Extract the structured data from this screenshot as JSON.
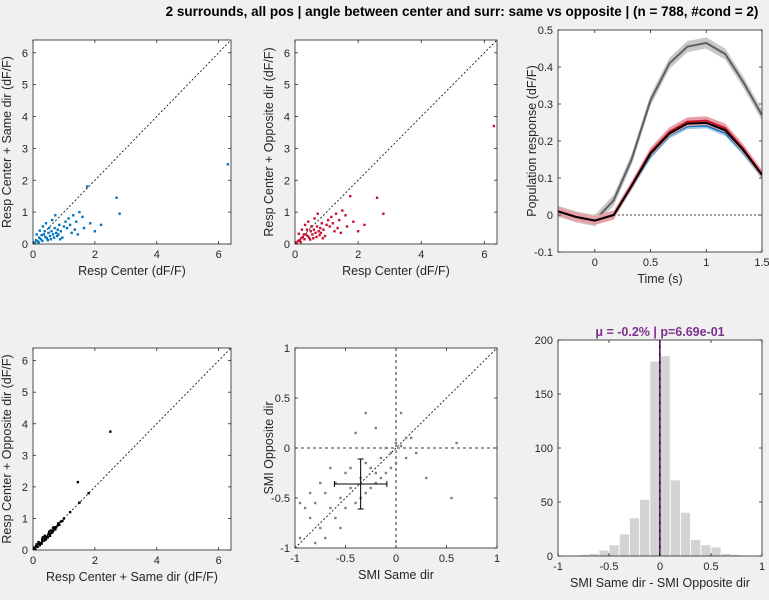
{
  "figure": {
    "title": "2 surrounds, all pos | angle between center and surr: same vs opposite | (n = 788, #cond = 2)"
  },
  "colors": {
    "same": "#0072bd",
    "opposite": "#c8102e",
    "black": "#000000",
    "gray": "#808080",
    "center_line": "#606060",
    "hist_bar": "#d3d3d3",
    "mean_line": "#7e2f8e"
  },
  "chart_data": [
    {
      "id": "p1",
      "type": "scatter",
      "xlabel": "Resp Center (dF/F)",
      "ylabel": "Resp Center + Same dir (dF/F)",
      "xlim": [
        0,
        6.4
      ],
      "ylim": [
        0,
        6.4
      ],
      "xticks": [
        0,
        2,
        4,
        6
      ],
      "yticks": [
        0,
        1,
        2,
        3,
        4,
        5,
        6
      ],
      "diagonal": true,
      "color": "same",
      "points": [
        [
          0.05,
          0.05
        ],
        [
          0.1,
          0.12
        ],
        [
          0.15,
          0.08
        ],
        [
          0.2,
          0.2
        ],
        [
          0.25,
          0.15
        ],
        [
          0.3,
          0.1
        ],
        [
          0.35,
          0.3
        ],
        [
          0.4,
          0.22
        ],
        [
          0.45,
          0.18
        ],
        [
          0.5,
          0.35
        ],
        [
          0.55,
          0.25
        ],
        [
          0.6,
          0.4
        ],
        [
          0.65,
          0.3
        ],
        [
          0.7,
          0.5
        ],
        [
          0.75,
          0.35
        ],
        [
          0.8,
          0.45
        ],
        [
          0.85,
          0.6
        ],
        [
          0.9,
          0.4
        ],
        [
          1.0,
          0.55
        ],
        [
          1.05,
          0.7
        ],
        [
          1.1,
          0.5
        ],
        [
          1.15,
          0.8
        ],
        [
          1.2,
          0.6
        ],
        [
          1.3,
          0.9
        ],
        [
          1.4,
          0.7
        ],
        [
          1.5,
          1.0
        ],
        [
          1.6,
          0.85
        ],
        [
          1.75,
          1.8
        ],
        [
          2.0,
          0.4
        ],
        [
          2.2,
          0.6
        ],
        [
          2.8,
          0.95
        ],
        [
          2.7,
          1.45
        ],
        [
          6.3,
          2.5
        ],
        [
          0.12,
          0.3
        ],
        [
          0.22,
          0.42
        ],
        [
          0.32,
          0.55
        ],
        [
          0.42,
          0.65
        ],
        [
          0.52,
          0.5
        ],
        [
          0.62,
          0.75
        ],
        [
          0.72,
          0.9
        ],
        [
          0.82,
          0.3
        ],
        [
          0.95,
          0.2
        ],
        [
          1.25,
          0.35
        ],
        [
          1.35,
          0.45
        ],
        [
          1.45,
          0.3
        ],
        [
          1.65,
          0.5
        ],
        [
          1.85,
          0.65
        ],
        [
          0.18,
          0.05
        ],
        [
          0.28,
          0.28
        ],
        [
          0.38,
          0.4
        ],
        [
          0.48,
          0.12
        ],
        [
          0.58,
          0.15
        ],
        [
          0.68,
          0.2
        ],
        [
          0.78,
          0.25
        ],
        [
          0.88,
          0.15
        ]
      ]
    },
    {
      "id": "p2",
      "type": "scatter",
      "xlabel": "Resp Center (dF/F)",
      "ylabel": "Resp Center + Opposite dir (dF/F)",
      "xlim": [
        0,
        6.4
      ],
      "ylim": [
        0,
        6.4
      ],
      "xticks": [
        0,
        2,
        4,
        6
      ],
      "yticks": [
        0,
        1,
        2,
        3,
        4,
        5,
        6
      ],
      "diagonal": true,
      "color": "opposite",
      "points": [
        [
          0.05,
          0.05
        ],
        [
          0.1,
          0.1
        ],
        [
          0.15,
          0.12
        ],
        [
          0.2,
          0.18
        ],
        [
          0.25,
          0.22
        ],
        [
          0.3,
          0.15
        ],
        [
          0.35,
          0.3
        ],
        [
          0.4,
          0.25
        ],
        [
          0.45,
          0.2
        ],
        [
          0.5,
          0.4
        ],
        [
          0.55,
          0.3
        ],
        [
          0.6,
          0.45
        ],
        [
          0.65,
          0.35
        ],
        [
          0.7,
          0.55
        ],
        [
          0.75,
          0.4
        ],
        [
          0.8,
          0.5
        ],
        [
          0.85,
          0.65
        ],
        [
          0.9,
          0.45
        ],
        [
          1.0,
          0.6
        ],
        [
          1.05,
          0.75
        ],
        [
          1.1,
          0.55
        ],
        [
          1.15,
          0.85
        ],
        [
          1.2,
          0.65
        ],
        [
          1.3,
          0.95
        ],
        [
          1.4,
          0.75
        ],
        [
          1.5,
          1.05
        ],
        [
          1.6,
          0.9
        ],
        [
          1.75,
          1.5
        ],
        [
          2.0,
          0.4
        ],
        [
          2.2,
          0.6
        ],
        [
          2.8,
          0.95
        ],
        [
          2.6,
          1.45
        ],
        [
          6.3,
          3.7
        ],
        [
          0.12,
          0.32
        ],
        [
          0.22,
          0.45
        ],
        [
          0.32,
          0.6
        ],
        [
          0.42,
          0.7
        ],
        [
          0.52,
          0.55
        ],
        [
          0.62,
          0.8
        ],
        [
          0.72,
          0.95
        ],
        [
          0.82,
          0.35
        ],
        [
          0.95,
          0.25
        ],
        [
          1.25,
          0.4
        ],
        [
          1.35,
          0.5
        ],
        [
          1.45,
          0.35
        ],
        [
          1.65,
          0.55
        ],
        [
          1.85,
          0.7
        ],
        [
          0.18,
          0.06
        ],
        [
          0.28,
          0.3
        ],
        [
          0.38,
          0.45
        ],
        [
          0.48,
          0.14
        ],
        [
          0.58,
          0.18
        ],
        [
          0.68,
          0.22
        ],
        [
          0.78,
          0.28
        ],
        [
          0.88,
          0.18
        ]
      ]
    },
    {
      "id": "p3",
      "type": "line",
      "xlabel": "Time (s)",
      "ylabel": "Population response (dF/F)",
      "xlim": [
        -0.33,
        1.5
      ],
      "ylim": [
        -0.1,
        0.5
      ],
      "xticks": [
        0,
        0.5,
        1,
        1.5
      ],
      "yticks": [
        -0.1,
        0,
        0.1,
        0.2,
        0.3,
        0.4,
        0.5
      ],
      "zero_line": true,
      "x": [
        -0.33,
        -0.17,
        0,
        0.17,
        0.33,
        0.5,
        0.67,
        0.83,
        1.0,
        1.17,
        1.33,
        1.5
      ],
      "series": [
        {
          "color": "center_line",
          "band": "#c8c8c8",
          "band_width": 0.015,
          "values": [
            0.01,
            -0.005,
            -0.015,
            0.04,
            0.15,
            0.31,
            0.41,
            0.455,
            0.465,
            0.435,
            0.36,
            0.27
          ]
        },
        {
          "color": "same",
          "band": "#9ec3e6",
          "band_width": 0.008,
          "values": [
            0.01,
            -0.005,
            -0.015,
            0.0,
            0.075,
            0.16,
            0.215,
            0.24,
            0.242,
            0.222,
            0.17,
            0.105
          ]
        },
        {
          "color": "opposite",
          "band": "#e8a0a8",
          "band_width": 0.012,
          "values": [
            0.01,
            -0.005,
            -0.015,
            0.0,
            0.08,
            0.17,
            0.225,
            0.252,
            0.255,
            0.235,
            0.18,
            0.11
          ]
        },
        {
          "color": "black",
          "band": "none",
          "band_width": 0,
          "values": [
            0.01,
            -0.005,
            -0.015,
            0.0,
            0.078,
            0.166,
            0.22,
            0.247,
            0.249,
            0.229,
            0.176,
            0.108
          ]
        }
      ]
    },
    {
      "id": "p4",
      "type": "scatter",
      "xlabel": "Resp Center + Same dir (dF/F)",
      "ylabel": "Resp Center + Opposite dir (dF/F)",
      "xlim": [
        0,
        6.4
      ],
      "ylim": [
        0,
        6.4
      ],
      "xticks": [
        0,
        2,
        4,
        6
      ],
      "yticks": [
        0,
        1,
        2,
        3,
        4,
        5,
        6
      ],
      "diagonal": true,
      "color": "black",
      "points": [
        [
          0.05,
          0.05
        ],
        [
          0.1,
          0.12
        ],
        [
          0.15,
          0.1
        ],
        [
          0.2,
          0.2
        ],
        [
          0.25,
          0.22
        ],
        [
          0.3,
          0.28
        ],
        [
          0.35,
          0.3
        ],
        [
          0.4,
          0.38
        ],
        [
          0.45,
          0.42
        ],
        [
          0.5,
          0.5
        ],
        [
          0.55,
          0.5
        ],
        [
          0.6,
          0.6
        ],
        [
          0.65,
          0.6
        ],
        [
          0.7,
          0.68
        ],
        [
          0.75,
          0.72
        ],
        [
          0.8,
          0.78
        ],
        [
          0.85,
          0.8
        ],
        [
          0.9,
          0.9
        ],
        [
          0.95,
          0.92
        ],
        [
          1.0,
          1.0
        ],
        [
          1.2,
          1.2
        ],
        [
          1.45,
          2.15
        ],
        [
          1.5,
          1.5
        ],
        [
          1.8,
          1.8
        ],
        [
          2.5,
          3.75
        ],
        [
          0.12,
          0.18
        ],
        [
          0.22,
          0.15
        ],
        [
          0.32,
          0.4
        ],
        [
          0.42,
          0.35
        ],
        [
          0.52,
          0.58
        ],
        [
          0.62,
          0.55
        ],
        [
          0.72,
          0.65
        ],
        [
          0.82,
          0.85
        ],
        [
          0.18,
          0.25
        ],
        [
          0.28,
          0.2
        ],
        [
          0.38,
          0.45
        ],
        [
          0.48,
          0.4
        ],
        [
          0.58,
          0.62
        ],
        [
          0.68,
          0.72
        ],
        [
          0.08,
          0.02
        ],
        [
          0.02,
          0.08
        ],
        [
          0.3,
          0.35
        ],
        [
          0.4,
          0.32
        ],
        [
          0.55,
          0.45
        ],
        [
          0.65,
          0.7
        ]
      ]
    },
    {
      "id": "p5",
      "type": "scatter",
      "xlabel": "SMI Same dir",
      "ylabel": "SMI Opposite dir",
      "xlim": [
        -1,
        1
      ],
      "ylim": [
        -1,
        1
      ],
      "xticks": [
        -1,
        -0.5,
        0,
        0.5,
        1
      ],
      "yticks": [
        -1,
        -0.5,
        0,
        0.5,
        1
      ],
      "diagonal": true,
      "zero_lines": true,
      "color": "gray",
      "mean_cross": {
        "x": -0.35,
        "y": -0.36,
        "x_err": 0.26,
        "y_err": 0.25
      },
      "points": [
        [
          -0.95,
          -0.9
        ],
        [
          -0.85,
          -0.7
        ],
        [
          -0.8,
          -0.55
        ],
        [
          -0.75,
          -0.8
        ],
        [
          -0.7,
          -0.45
        ],
        [
          -0.65,
          -0.6
        ],
        [
          -0.6,
          -0.35
        ],
        [
          -0.55,
          -0.5
        ],
        [
          -0.5,
          -0.25
        ],
        [
          -0.45,
          -0.4
        ],
        [
          -0.4,
          -0.55
        ],
        [
          -0.35,
          -0.3
        ],
        [
          -0.3,
          -0.45
        ],
        [
          -0.25,
          -0.2
        ],
        [
          -0.2,
          -0.35
        ],
        [
          -0.15,
          -0.1
        ],
        [
          -0.1,
          -0.25
        ],
        [
          -0.05,
          -0.05
        ],
        [
          0.0,
          -0.15
        ],
        [
          0.05,
          0.02
        ],
        [
          0.1,
          -0.1
        ],
        [
          0.15,
          0.1
        ],
        [
          0.2,
          -0.05
        ],
        [
          -0.9,
          -0.6
        ],
        [
          -0.7,
          -0.9
        ],
        [
          -0.6,
          -0.7
        ],
        [
          -0.5,
          -0.6
        ],
        [
          -0.45,
          -0.2
        ],
        [
          -0.35,
          -0.5
        ],
        [
          -0.3,
          -0.15
        ],
        [
          -0.25,
          -0.4
        ],
        [
          -0.2,
          -0.25
        ],
        [
          -0.15,
          -0.3
        ],
        [
          -0.1,
          0.0
        ],
        [
          -0.05,
          -0.2
        ],
        [
          0.0,
          0.05
        ],
        [
          0.1,
          0.1
        ],
        [
          0.3,
          -0.3
        ],
        [
          0.55,
          -0.5
        ],
        [
          -0.4,
          0.15
        ],
        [
          -0.2,
          0.2
        ],
        [
          -0.55,
          -0.8
        ],
        [
          -0.65,
          -0.2
        ],
        [
          -0.75,
          -0.35
        ],
        [
          -0.85,
          -0.45
        ],
        [
          0.6,
          0.05
        ],
        [
          0.05,
          0.35
        ],
        [
          -0.3,
          0.35
        ],
        [
          -0.95,
          -0.55
        ],
        [
          -0.8,
          -0.95
        ]
      ]
    },
    {
      "id": "p6",
      "type": "bar",
      "title": "μ = -0.2% | p=6.69e-01",
      "xlabel": "SMI Same dir - SMI Opposite dir",
      "ylabel": "",
      "xlim": [
        -1,
        1
      ],
      "ylim": [
        0,
        200
      ],
      "xticks": [
        -1,
        -0.5,
        0,
        0.5,
        1
      ],
      "yticks": [
        0,
        50,
        100,
        150,
        200
      ],
      "bin_width": 0.1,
      "bin_centers": [
        -0.85,
        -0.75,
        -0.65,
        -0.55,
        -0.45,
        -0.35,
        -0.25,
        -0.15,
        -0.05,
        0.05,
        0.15,
        0.25,
        0.35,
        0.45,
        0.55,
        0.65,
        0.75,
        0.85
      ],
      "values": [
        0,
        1,
        2,
        5,
        10,
        20,
        35,
        52,
        180,
        185,
        70,
        40,
        15,
        10,
        8,
        2,
        1,
        0
      ],
      "mean_lines": [
        -0.002,
        0.0
      ]
    }
  ]
}
